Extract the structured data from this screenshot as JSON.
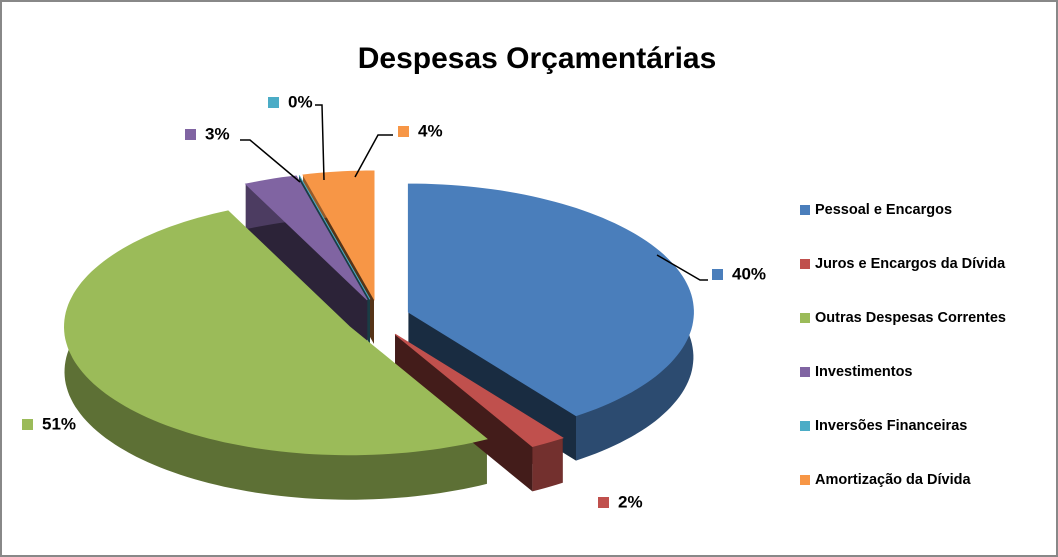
{
  "chart_data": {
    "type": "pie",
    "title": "Despesas Orçamentárias",
    "categories": [
      "Pessoal e Encargos",
      "Juros e Encargos da Dívida",
      "Outras Despesas Correntes",
      "Investimentos",
      "Inversões Financeiras",
      "Amortização da Dívida"
    ],
    "values": [
      40,
      2,
      51,
      3,
      0,
      4
    ],
    "value_labels": [
      "40%",
      "2%",
      "51%",
      "3%",
      "0%",
      "4%"
    ],
    "colors": [
      "#4a7ebb",
      "#c0504d",
      "#9bbb59",
      "#8064a2",
      "#4bacc6",
      "#f79646"
    ],
    "legend": "right"
  }
}
